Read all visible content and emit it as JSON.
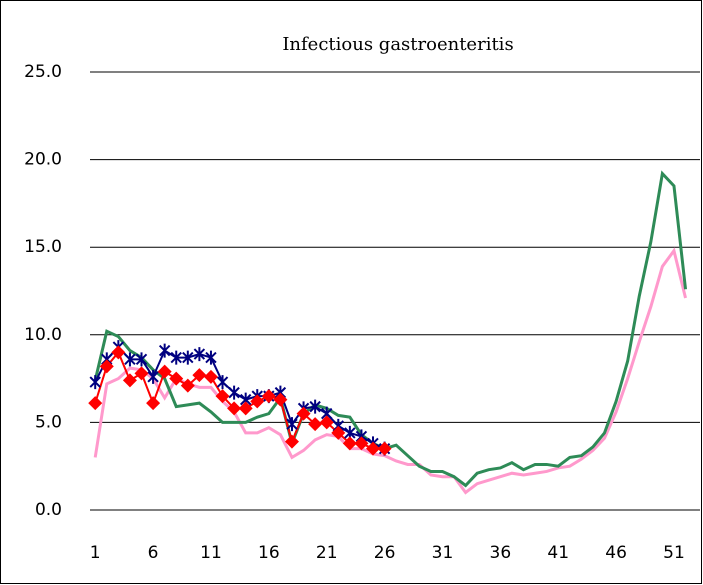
{
  "chart_data": {
    "type": "line",
    "title": "Infectious gastroenteritis",
    "x": [
      1,
      2,
      3,
      4,
      5,
      6,
      7,
      8,
      9,
      10,
      11,
      12,
      13,
      14,
      15,
      16,
      17,
      18,
      19,
      20,
      21,
      22,
      23,
      24,
      25,
      26,
      27,
      28,
      29,
      30,
      31,
      32,
      33,
      34,
      35,
      36,
      37,
      38,
      39,
      40,
      41,
      42,
      43,
      44,
      45,
      46,
      47,
      48,
      49,
      50,
      51,
      52
    ],
    "xlim": [
      0.55,
      53.25
    ],
    "xticks": [
      1,
      6,
      11,
      16,
      21,
      26,
      31,
      36,
      41,
      46,
      51
    ],
    "ylim": [
      0,
      25
    ],
    "yticks": [
      {
        "value": 0,
        "label": "0.0"
      },
      {
        "value": 5,
        "label": "5.0"
      },
      {
        "value": 10,
        "label": "10.0"
      },
      {
        "value": 15,
        "label": "15.0"
      },
      {
        "value": 20,
        "label": "20.0"
      },
      {
        "value": 25,
        "label": "25.0"
      }
    ],
    "grid": true,
    "series": [
      {
        "color": "#ff99cc",
        "marker": "none",
        "values": [
          3.0,
          7.2,
          7.5,
          8.1,
          8.0,
          7.5,
          6.4,
          7.5,
          7.2,
          7.0,
          7.0,
          6.2,
          5.6,
          4.4,
          4.4,
          4.7,
          4.3,
          3.0,
          3.4,
          4.0,
          4.3,
          4.2,
          3.5,
          3.5,
          3.2,
          3.1,
          2.8,
          2.6,
          2.6,
          2.0,
          1.9,
          1.9,
          1.0,
          1.5,
          1.7,
          1.9,
          2.1,
          2.0,
          2.1,
          2.2,
          2.4,
          2.5,
          2.9,
          3.4,
          4.1,
          5.6,
          7.5,
          9.6,
          11.6,
          13.9,
          14.8,
          12.1
        ]
      },
      {
        "color": "#2e8b57",
        "marker": "none",
        "values": [
          7.4,
          10.2,
          9.9,
          9.1,
          8.7,
          8.0,
          7.5,
          5.9,
          6.0,
          6.1,
          5.6,
          5.0,
          5.0,
          5.0,
          5.3,
          5.5,
          6.4,
          3.8,
          5.5,
          6.0,
          5.8,
          5.4,
          5.3,
          4.3,
          3.8,
          3.5,
          3.7,
          3.1,
          2.5,
          2.2,
          2.2,
          1.9,
          1.4,
          2.1,
          2.3,
          2.4,
          2.7,
          2.3,
          2.6,
          2.6,
          2.5,
          3.0,
          3.1,
          3.6,
          4.4,
          6.2,
          8.5,
          12.2,
          15.3,
          19.2,
          18.5,
          12.6
        ]
      },
      {
        "color": "#000080",
        "marker": "star",
        "values": [
          7.3,
          8.6,
          9.3,
          8.6,
          8.6,
          7.6,
          9.1,
          8.7,
          8.7,
          8.9,
          8.7,
          7.3,
          6.7,
          6.3,
          6.5,
          6.5,
          6.7,
          4.9,
          5.8,
          5.9,
          5.5,
          4.8,
          4.4,
          4.2,
          3.8,
          3.5,
          null,
          null,
          null,
          null,
          null,
          null,
          null,
          null,
          null,
          null,
          null,
          null,
          null,
          null,
          null,
          null,
          null,
          null,
          null,
          null,
          null,
          null,
          null,
          null,
          null,
          null
        ]
      },
      {
        "color": "#ff0000",
        "marker": "diamond",
        "values": [
          6.1,
          8.2,
          9.0,
          7.4,
          7.8,
          6.1,
          7.9,
          7.5,
          7.1,
          7.7,
          7.6,
          6.5,
          5.8,
          5.8,
          6.2,
          6.5,
          6.3,
          3.9,
          5.5,
          4.9,
          5.0,
          4.4,
          3.8,
          3.8,
          3.5,
          3.5,
          null,
          null,
          null,
          null,
          null,
          null,
          null,
          null,
          null,
          null,
          null,
          null,
          null,
          null,
          null,
          null,
          null,
          null,
          null,
          null,
          null,
          null,
          null,
          null,
          null,
          null
        ]
      }
    ]
  }
}
